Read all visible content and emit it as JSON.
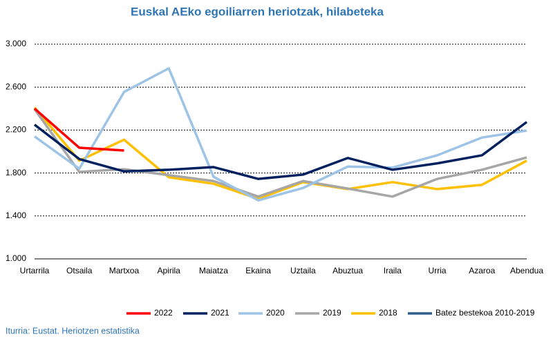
{
  "chart_data": {
    "type": "line",
    "title": "Euskal AEko egoiliarren heriotzak, hilabeteka",
    "source": "Iturria: Eustat. Heriotzen estatistika",
    "categories": [
      "Urtarrila",
      "Otsaila",
      "Martxoa",
      "Apirila",
      "Maiatza",
      "Ekaina",
      "Uztaila",
      "Abuztua",
      "Iraila",
      "Urria",
      "Azaroa",
      "Abendua"
    ],
    "series": [
      {
        "name": "2022",
        "color": "#ff0000",
        "values": [
          2400,
          2035,
          2010,
          null,
          null,
          null,
          null,
          null,
          null,
          null,
          null,
          null
        ]
      },
      {
        "name": "2021",
        "color": "#002060",
        "values": [
          2250,
          1930,
          1815,
          1830,
          1855,
          1745,
          1785,
          1940,
          1830,
          1890,
          1965,
          2275
        ]
      },
      {
        "name": "2020",
        "color": "#9dc3e6",
        "values": [
          2140,
          1840,
          2555,
          2775,
          1765,
          1545,
          1660,
          1860,
          1850,
          1965,
          2130,
          2195
        ]
      },
      {
        "name": "2019",
        "color": "#a6a6a6",
        "values": [
          2395,
          1810,
          1835,
          1780,
          1725,
          1580,
          1725,
          1655,
          1580,
          1745,
          1830,
          1945
        ]
      },
      {
        "name": "2018",
        "color": "#ffc000",
        "values": [
          2410,
          1915,
          2110,
          1760,
          1700,
          1560,
          1715,
          1650,
          1715,
          1650,
          1690,
          1915
        ]
      },
      {
        "name": "Batez bestekoa 2010-2019",
        "color": "#2e5f8f",
        "values": [
          null,
          null,
          null,
          null,
          null,
          null,
          null,
          null,
          null,
          null,
          null,
          null
        ]
      }
    ],
    "ylim": [
      1000,
      3000
    ],
    "yticks": [
      {
        "value": 1000,
        "label": "1.000"
      },
      {
        "value": 1400,
        "label": "1.400"
      },
      {
        "value": 1800,
        "label": "1.800"
      },
      {
        "value": 2200,
        "label": "2.200"
      },
      {
        "value": 2600,
        "label": "2.600"
      },
      {
        "value": 3000,
        "label": "3.000"
      }
    ],
    "grid": true
  }
}
